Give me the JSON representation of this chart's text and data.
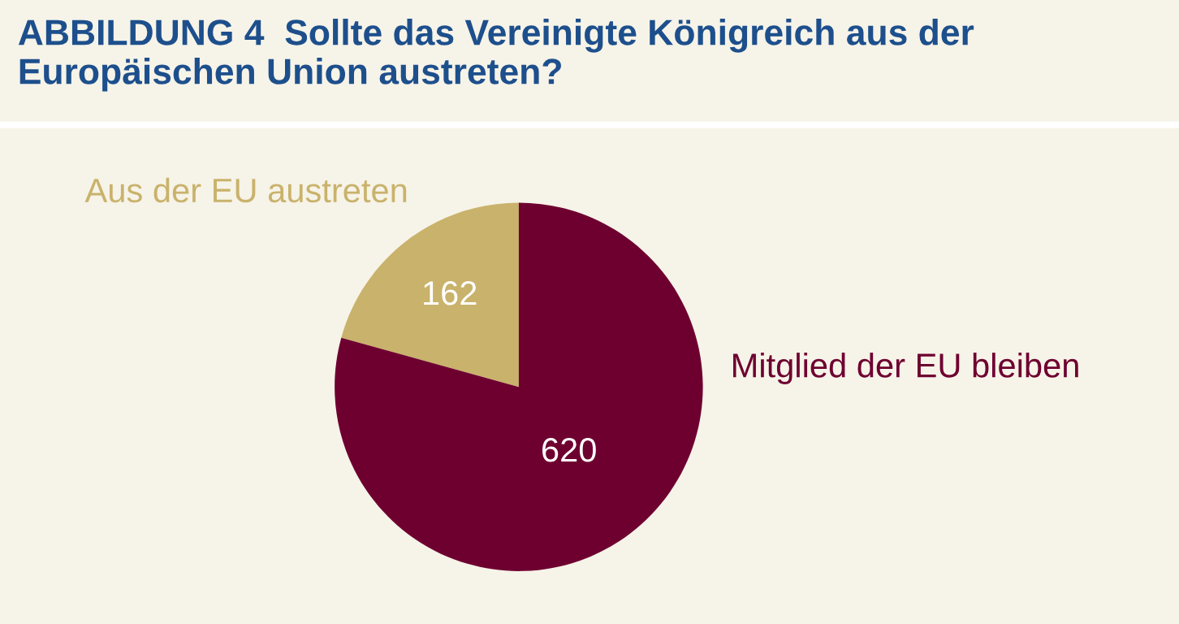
{
  "chart_data": {
    "type": "pie",
    "title": "ABBILDUNG 4  Sollte das Vereinigte Königreich aus der Europäischen Union austreten?",
    "categories": [
      "Aus der EU austreten",
      "Mitglied der EU bleiben"
    ],
    "values": [
      162,
      620
    ],
    "colors": [
      "#c9b26b",
      "#6e0030"
    ],
    "data_labels": true,
    "legend": false
  }
}
